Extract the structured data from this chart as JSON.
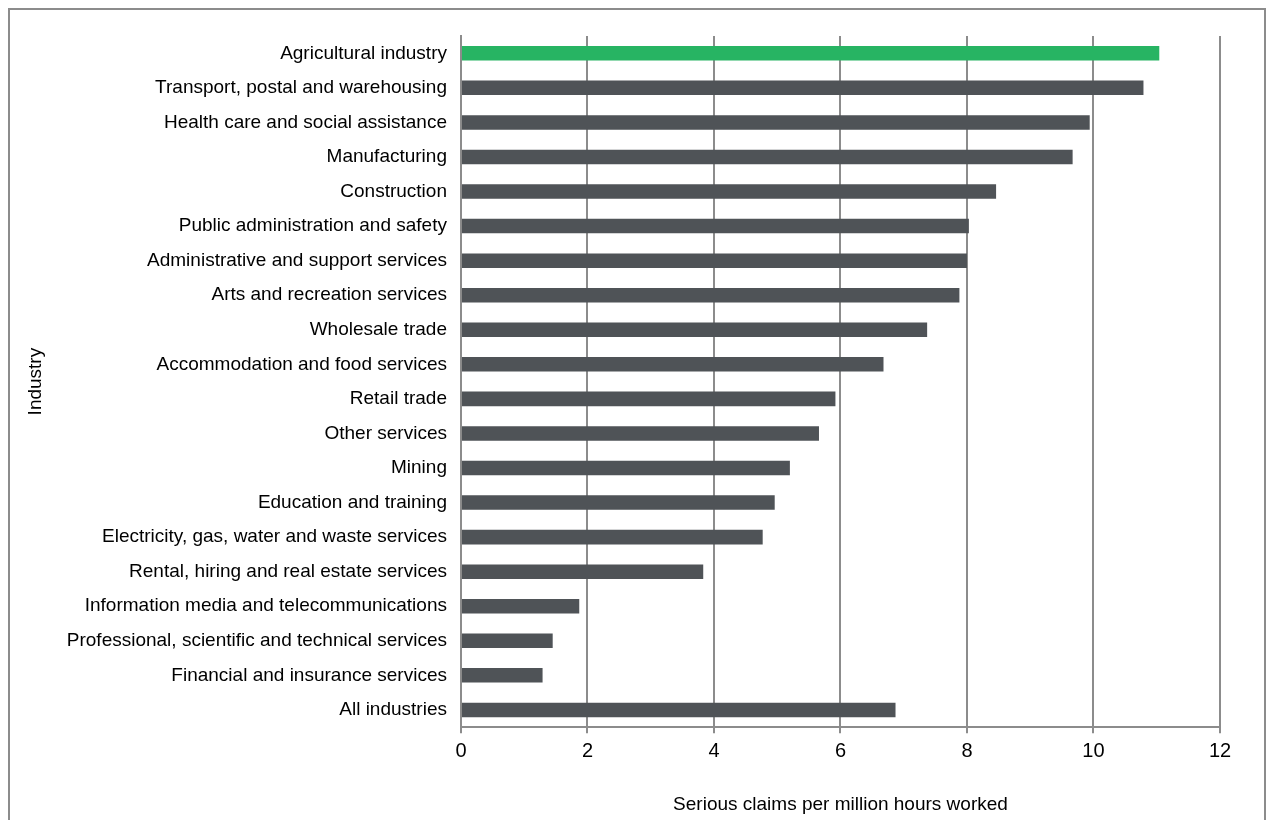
{
  "chart_data": {
    "type": "bar",
    "orientation": "horizontal",
    "xlabel": "Serious claims per million hours worked",
    "ylabel": "Industry",
    "categories": [
      "Agricultural industry",
      "Transport, postal and warehousing",
      "Health care and social assistance",
      "Manufacturing",
      "Construction",
      "Public administration and safety",
      "Administrative and support services",
      "Arts and recreation services",
      "Wholesale trade",
      "Accommodation and food services",
      "Retail trade",
      "Other services",
      "Mining",
      "Education and training",
      "Electricity, gas, water and waste services",
      "Rental, hiring and real estate services",
      "Information media and telecommunications",
      "Professional, scientific and technical services",
      "Financial and insurance services",
      "All industries"
    ],
    "values": [
      11.04,
      10.79,
      9.94,
      9.67,
      8.46,
      8.03,
      8.0,
      7.88,
      7.37,
      6.68,
      5.92,
      5.66,
      5.2,
      4.96,
      4.77,
      3.83,
      1.87,
      1.45,
      1.29,
      6.87
    ],
    "colors": [
      "#27b463",
      "#4f5357",
      "#4f5357",
      "#4f5357",
      "#4f5357",
      "#4f5357",
      "#4f5357",
      "#4f5357",
      "#4f5357",
      "#4f5357",
      "#4f5357",
      "#4f5357",
      "#4f5357",
      "#4f5357",
      "#4f5357",
      "#4f5357",
      "#4f5357",
      "#4f5357",
      "#4f5357",
      "#4f5357"
    ],
    "xlim": [
      0,
      12
    ],
    "xticks": [
      0,
      2,
      4,
      6,
      8,
      10,
      12
    ],
    "grid": "x",
    "legend": false
  }
}
